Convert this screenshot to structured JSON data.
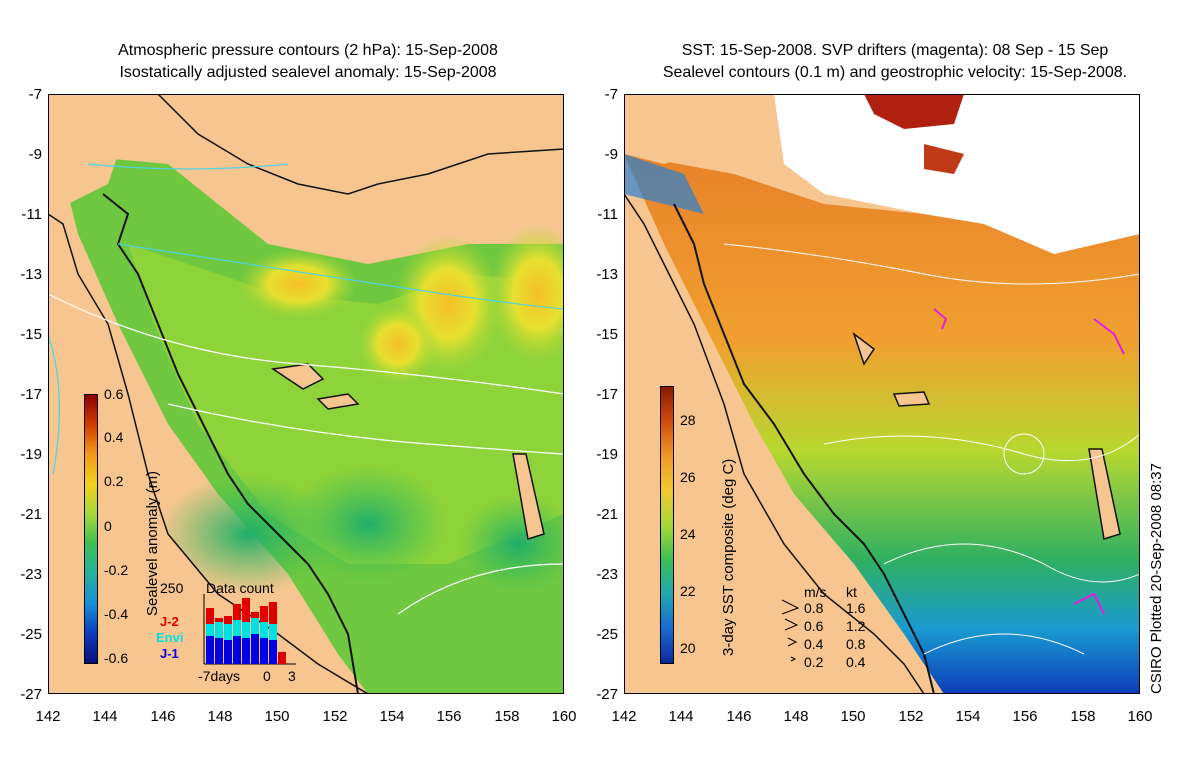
{
  "left_panel": {
    "title_line1": "Atmospheric pressure contours (2 hPa): 15-Sep-2008",
    "title_line2": "Isostatically adjusted sealevel anomaly: 15-Sep-2008",
    "colorbar_label": "Sealevel anomaly (m)",
    "colorbar_ticks": [
      "0.6",
      "0.4",
      "0.2",
      "0",
      "-0.2",
      "-0.4",
      "-0.6"
    ],
    "inset": {
      "title": "Data count",
      "ymax_label": "250",
      "satellites": [
        {
          "name": "J-2",
          "color": "#e00000"
        },
        {
          "name": "Envi",
          "color": "#00e0e0"
        },
        {
          "name": "J-1",
          "color": "#0000e0"
        }
      ],
      "xlabel_left": "-7days",
      "xlabel_mid": "0",
      "xlabel_right": "3"
    }
  },
  "right_panel": {
    "title_line1": "SST: 15-Sep-2008. SVP drifters (magenta): 08 Sep - 15 Sep",
    "title_line2": "Sealevel contours (0.1 m) and geostrophic velocity: 15-Sep-2008.",
    "colorbar_label": "3-day SST composite (deg C)",
    "colorbar_ticks": [
      "28",
      "26",
      "24",
      "22",
      "20"
    ],
    "velocity_legend": {
      "header_ms": "m/s",
      "header_kt": "kt",
      "rows": [
        {
          "ms": "0.8",
          "kt": "1.6"
        },
        {
          "ms": "0.6",
          "kt": "1.2"
        },
        {
          "ms": "0.4",
          "kt": "0.8"
        },
        {
          "ms": "0.2",
          "kt": "0.4"
        }
      ]
    }
  },
  "axes": {
    "y_ticks": [
      "-7",
      "-9",
      "-11",
      "-13",
      "-15",
      "-17",
      "-19",
      "-21",
      "-23",
      "-25",
      "-27"
    ],
    "x_ticks": [
      "142",
      "144",
      "146",
      "148",
      "150",
      "152",
      "154",
      "156",
      "158",
      "160"
    ]
  },
  "credit": "CSIRO Plotted 20-Sep-2008 08:37",
  "colors": {
    "land": "#f7c690",
    "sla_positive": "#f0d020",
    "sla_zero": "#7ccd30",
    "sst_warm": "#e88020",
    "sst_cool": "#1a7ad0"
  }
}
